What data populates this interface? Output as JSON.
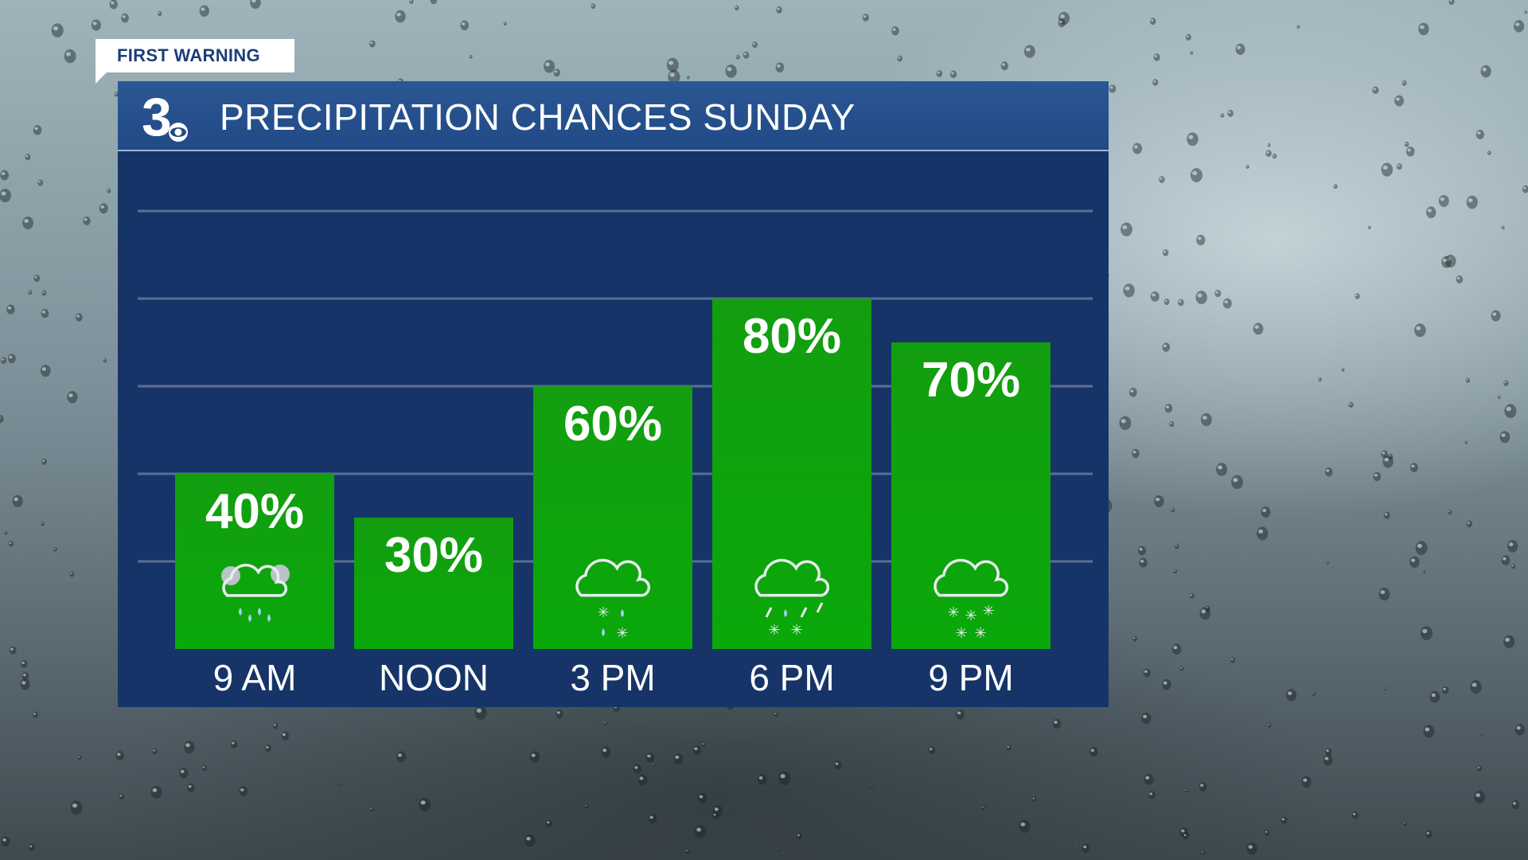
{
  "banner": {
    "label": "FIRST WARNING"
  },
  "header": {
    "title": "PRECIPITATION CHANCES SUNDAY",
    "logo_text": "3"
  },
  "colors": {
    "bar_top": "#139e10",
    "bar_bottom": "#0aa80a",
    "plot_bg": "#163468",
    "gridline": "#5b6f92",
    "label": "#ffffff"
  },
  "chart_data": {
    "type": "bar",
    "title": "PRECIPITATION CHANCES SUNDAY",
    "categories": [
      "9 AM",
      "NOON",
      "3 PM",
      "6 PM",
      "9 PM"
    ],
    "values": [
      40,
      30,
      60,
      80,
      70
    ],
    "value_labels": [
      "40%",
      "30%",
      "60%",
      "80%",
      "70%"
    ],
    "icons": [
      "partly-cloudy-rain-icon",
      "",
      "rain-snow-mix-icon",
      "wintry-mix-icon",
      "snow-icon"
    ],
    "ylim": [
      0,
      100
    ],
    "grid": true,
    "legend": "none"
  }
}
